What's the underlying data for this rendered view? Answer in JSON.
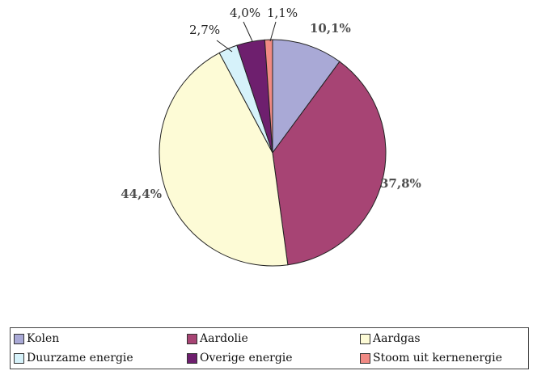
{
  "chart_data": {
    "type": "pie",
    "title": "",
    "categories": [
      "Kolen",
      "Aardolie",
      "Aardgas",
      "Duurzame energie",
      "Overige energie",
      "Stoom uit kernenergie"
    ],
    "values": [
      10.1,
      37.8,
      44.4,
      2.7,
      4.0,
      1.1
    ],
    "value_labels": [
      "10,1%",
      "37,8%",
      "44,4%",
      "2,7%",
      "4,0%",
      "1,1%"
    ],
    "colors": [
      "#a9a9d6",
      "#a74474",
      "#fdfbd6",
      "#d6f2fa",
      "#6e1f6e",
      "#f08a84"
    ],
    "start_angle_deg": 0,
    "direction": "clockwise",
    "legend_position": "bottom",
    "legend": [
      {
        "label": "Kolen",
        "color": "#a9a9d6"
      },
      {
        "label": "Aardolie",
        "color": "#a74474"
      },
      {
        "label": "Aardgas",
        "color": "#fdfbd6"
      },
      {
        "label": "Duurzame energie",
        "color": "#d6f2fa"
      },
      {
        "label": "Overige energie",
        "color": "#6e1f6e"
      },
      {
        "label": "Stoom uit kernenergie",
        "color": "#f08a84"
      }
    ]
  }
}
